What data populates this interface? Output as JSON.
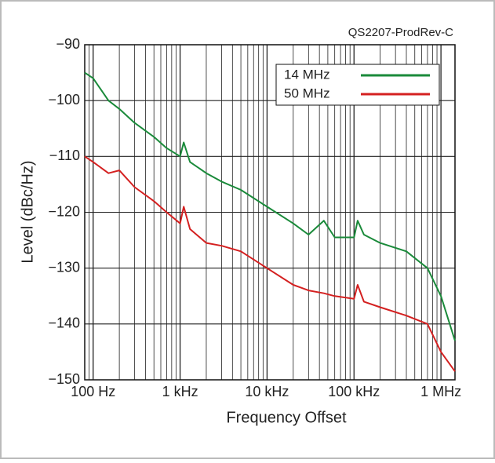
{
  "chart_data": {
    "type": "line",
    "title": "QS2207-ProdRev-C",
    "xlabel": "Frequency Offset",
    "ylabel": "Level (dBc/Hz)",
    "xscale": "log",
    "grid": true,
    "minor_grid": true,
    "legend": "upper right",
    "xlim": [
      80,
      1450000
    ],
    "ylim": [
      -150,
      -90
    ],
    "xticks": [
      {
        "value": 100,
        "label": "100 Hz"
      },
      {
        "value": 1000,
        "label": "1 kHz"
      },
      {
        "value": 10000,
        "label": "10 kHz"
      },
      {
        "value": 100000,
        "label": "100 kHz"
      },
      {
        "value": 1000000,
        "label": "1 MHz"
      }
    ],
    "yticks": [
      {
        "value": -90,
        "label": "−90"
      },
      {
        "value": -100,
        "label": "−100"
      },
      {
        "value": -110,
        "label": "−110"
      },
      {
        "value": -120,
        "label": "−120"
      },
      {
        "value": -130,
        "label": "−130"
      },
      {
        "value": -140,
        "label": "−140"
      },
      {
        "value": -150,
        "label": "−150"
      }
    ],
    "x": [
      80,
      100,
      150,
      200,
      300,
      500,
      700,
      1000,
      1100,
      1300,
      2000,
      3000,
      5000,
      10000,
      20000,
      30000,
      45000,
      60000,
      100000,
      110000,
      130000,
      200000,
      400000,
      700000,
      1000000,
      1450000
    ],
    "series": [
      {
        "name": "14 MHz",
        "color": "#1a8a3a",
        "values": [
          -95,
          -96,
          -100,
          -101.5,
          -104,
          -106.5,
          -108.5,
          -110,
          -107.5,
          -111,
          -113,
          -114.5,
          -116,
          -119,
          -122,
          -124,
          -121.5,
          -124.5,
          -124.5,
          -121.5,
          -124,
          -125.5,
          -127,
          -130,
          -135,
          -143
        ]
      },
      {
        "name": "50 MHz",
        "color": "#d42020",
        "values": [
          -110,
          -111,
          -113,
          -112.5,
          -115.5,
          -118,
          -120,
          -122,
          -119,
          -123,
          -125.5,
          -126,
          -127,
          -130,
          -133,
          -134,
          -134.5,
          -135,
          -135.5,
          -133,
          -136,
          -137,
          -138.5,
          -140,
          -145,
          -148.5
        ]
      }
    ]
  }
}
